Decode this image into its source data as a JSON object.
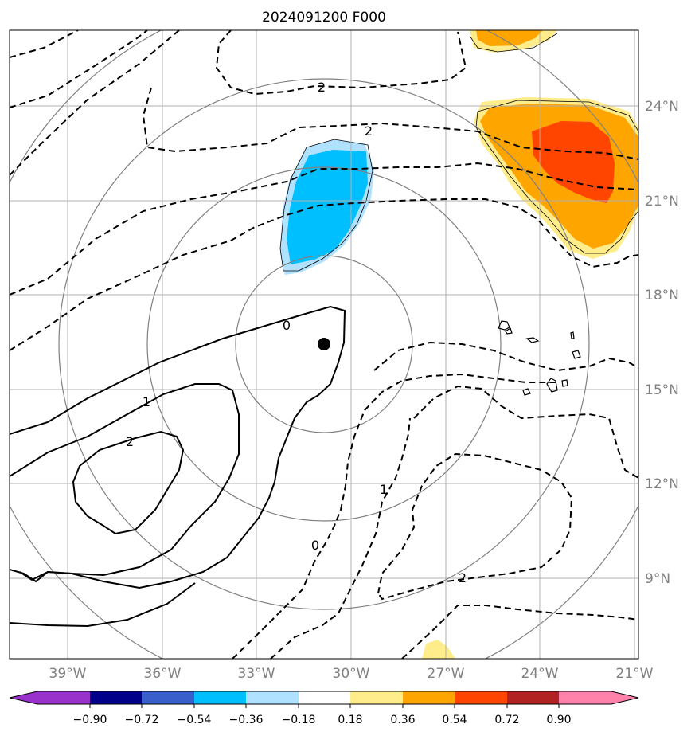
{
  "title": "2024091200 F000",
  "map": {
    "lon_labels": [
      "39°W",
      "36°W",
      "33°W",
      "30°W",
      "27°W",
      "24°W",
      "21°W"
    ],
    "lat_labels": [
      "24°N",
      "21°N",
      "18°N",
      "15°N",
      "12°N",
      "9°N"
    ],
    "lon_values": [
      -39,
      -36,
      -33,
      -30,
      -27,
      -24,
      -21
    ],
    "lat_values": [
      24,
      21,
      18,
      15,
      12,
      9
    ],
    "extent": {
      "lon": [
        -40.8,
        -20.9
      ],
      "lat": [
        6.6,
        26.6
      ]
    },
    "center_marker": {
      "lon": -30.8,
      "lat": 16.4
    },
    "contour_labels": [
      "2",
      "2",
      "0",
      "1",
      "2",
      "0",
      "1",
      "2"
    ],
    "grid": true
  },
  "colorbar": {
    "tick_labels": [
      "−0.90",
      "−0.72",
      "−0.54",
      "−0.36",
      "−0.18",
      "0.18",
      "0.36",
      "0.54",
      "0.72",
      "0.90"
    ],
    "colors": [
      "#9932CC",
      "#00008B",
      "#3A5FCD",
      "#00BFFF",
      "#B0E2FF",
      "#FFFFFF",
      "#FFEC8B",
      "#FFA500",
      "#FF4500",
      "#B22222",
      "#FF82AB"
    ]
  }
}
